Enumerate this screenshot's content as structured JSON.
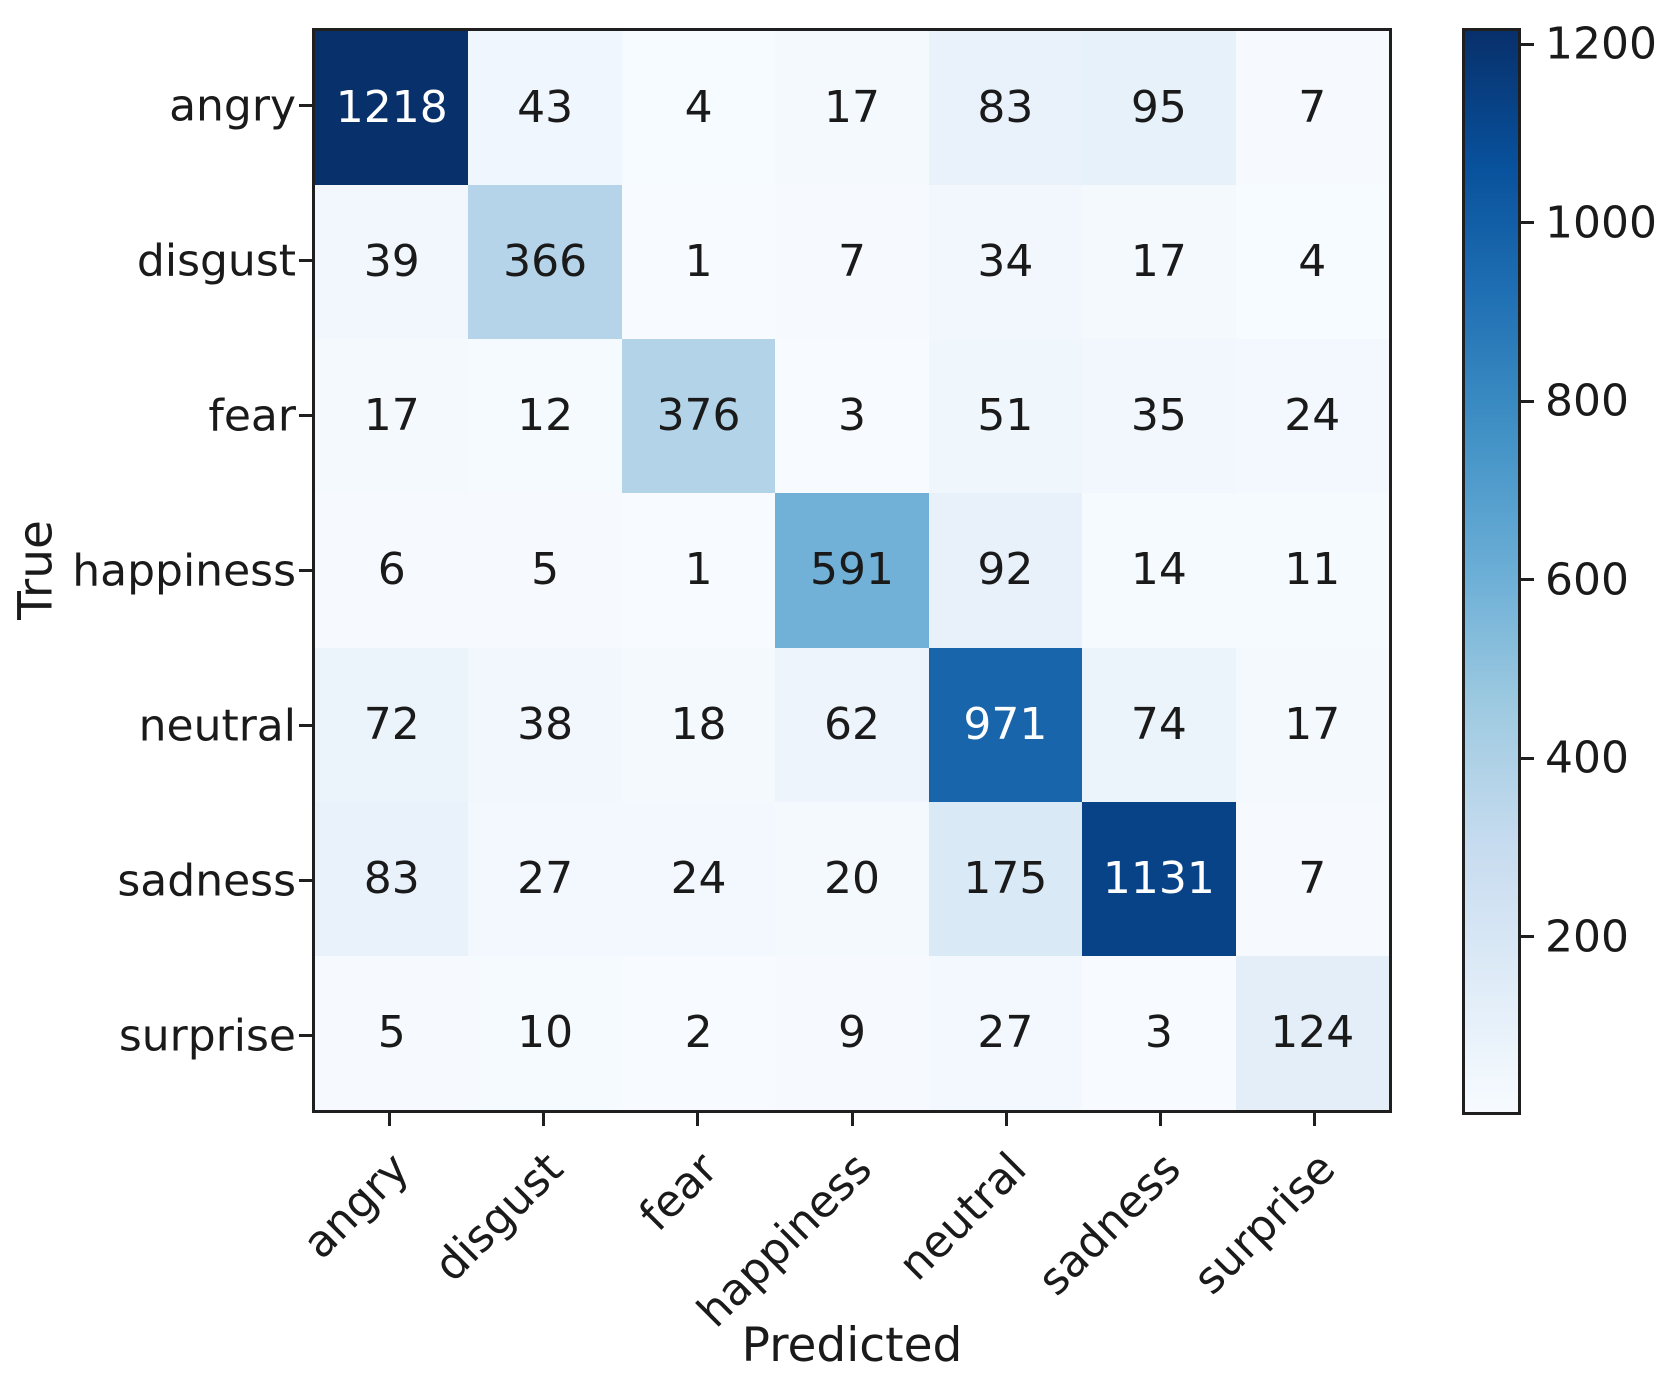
{
  "chart_data": {
    "type": "heatmap",
    "title": "",
    "xlabel": "Predicted",
    "ylabel": "True",
    "x_categories": [
      "angry",
      "disgust",
      "fear",
      "happiness",
      "neutral",
      "sadness",
      "surprise"
    ],
    "y_categories": [
      "angry",
      "disgust",
      "fear",
      "happiness",
      "neutral",
      "sadness",
      "surprise"
    ],
    "matrix": [
      [
        1218,
        43,
        4,
        17,
        83,
        95,
        7
      ],
      [
        39,
        366,
        1,
        7,
        34,
        17,
        4
      ],
      [
        17,
        12,
        376,
        3,
        51,
        35,
        24
      ],
      [
        6,
        5,
        1,
        591,
        92,
        14,
        11
      ],
      [
        72,
        38,
        18,
        62,
        971,
        74,
        17
      ],
      [
        83,
        27,
        24,
        20,
        175,
        1131,
        7
      ],
      [
        5,
        10,
        2,
        9,
        27,
        3,
        124
      ]
    ],
    "vmin": 0,
    "vmax": 1218,
    "grid": false,
    "legend_position": "right-colorbar",
    "colorbar_ticks": [
      1200,
      1000,
      800,
      600,
      400,
      200
    ],
    "colormap": {
      "name": "Blues",
      "anchors": [
        {
          "pos": 0.0,
          "color": "#f7fbff"
        },
        {
          "pos": 0.125,
          "color": "#deebf7"
        },
        {
          "pos": 0.25,
          "color": "#c6dbef"
        },
        {
          "pos": 0.375,
          "color": "#9ecae1"
        },
        {
          "pos": 0.5,
          "color": "#6baed6"
        },
        {
          "pos": 0.625,
          "color": "#4292c6"
        },
        {
          "pos": 0.75,
          "color": "#2171b5"
        },
        {
          "pos": 0.875,
          "color": "#08519c"
        },
        {
          "pos": 1.0,
          "color": "#08306b"
        }
      ]
    },
    "annotation_colors": {
      "dark": "#1a1a1a",
      "light": "#ffffff"
    },
    "spine_color": "#1f1f1f"
  }
}
